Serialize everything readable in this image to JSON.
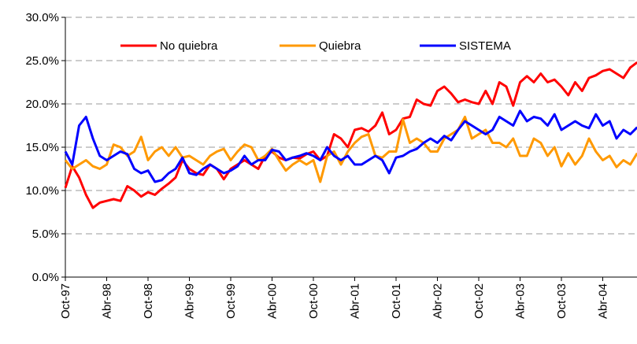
{
  "chart_data": {
    "type": "line",
    "categories": [
      "Oct-97",
      null,
      null,
      null,
      null,
      null,
      "Abr-98",
      null,
      null,
      null,
      null,
      null,
      "Oct-98",
      null,
      null,
      null,
      null,
      null,
      "Abr-99",
      null,
      null,
      null,
      null,
      null,
      "Oct-99",
      null,
      null,
      null,
      null,
      null,
      "Abr-00",
      null,
      null,
      null,
      null,
      null,
      "Oct-00",
      null,
      null,
      null,
      null,
      null,
      "Abr-01",
      null,
      null,
      null,
      null,
      null,
      "Oct-01",
      null,
      null,
      null,
      null,
      null,
      "Abr-02",
      null,
      null,
      null,
      null,
      null,
      "Oct-02",
      null,
      null,
      null,
      null,
      null,
      "Abr-03",
      null,
      null,
      null,
      null,
      null,
      "Oct-03",
      null,
      null,
      null,
      null,
      null,
      "Abr-04",
      null,
      null,
      null,
      null,
      null
    ],
    "series": [
      {
        "name": "No quiebra",
        "color": "#ff0000",
        "values": [
          10.3,
          12.8,
          11.5,
          9.5,
          8.0,
          8.6,
          8.8,
          9.0,
          8.8,
          10.5,
          10.0,
          9.3,
          9.8,
          9.5,
          10.2,
          10.8,
          11.5,
          13.5,
          12.5,
          12.0,
          11.8,
          13.0,
          12.5,
          11.3,
          12.5,
          13.0,
          13.5,
          13.0,
          12.5,
          14.0,
          14.5,
          13.8,
          13.5,
          13.8,
          13.7,
          14.2,
          14.5,
          13.5,
          14.0,
          16.5,
          16.0,
          15.0,
          17.0,
          17.2,
          16.8,
          17.5,
          19.0,
          16.5,
          17.0,
          18.3,
          18.5,
          20.5,
          20.0,
          19.8,
          21.5,
          22.0,
          21.2,
          20.2,
          20.5,
          20.2,
          20.0,
          21.5,
          20.0,
          22.5,
          22.0,
          19.8,
          22.5,
          23.2,
          22.5,
          23.5,
          22.5,
          22.8,
          22.0,
          21.0,
          22.5,
          21.5,
          23.0,
          23.3,
          23.8,
          24.0,
          23.5,
          23.0,
          24.2,
          24.8
        ]
      },
      {
        "name": "Quiebra",
        "color": "#ff9900",
        "values": [
          13.5,
          12.5,
          13.0,
          13.5,
          12.8,
          12.5,
          13.0,
          15.3,
          15.0,
          14.0,
          14.5,
          16.2,
          13.5,
          14.5,
          15.0,
          14.0,
          15.0,
          13.8,
          14.0,
          13.5,
          13.0,
          14.0,
          14.5,
          14.8,
          13.5,
          14.5,
          15.3,
          15.0,
          13.5,
          14.0,
          14.8,
          13.5,
          12.3,
          13.0,
          13.5,
          13.0,
          13.5,
          11.0,
          14.0,
          14.5,
          13.0,
          14.5,
          15.5,
          16.2,
          16.5,
          14.0,
          13.8,
          14.5,
          14.5,
          18.2,
          15.5,
          16.0,
          15.5,
          14.5,
          14.5,
          16.0,
          16.5,
          17.0,
          18.5,
          16.0,
          16.5,
          17.0,
          15.5,
          15.5,
          15.0,
          16.0,
          14.0,
          14.0,
          16.0,
          15.5,
          14.0,
          15.0,
          12.8,
          14.3,
          13.0,
          14.0,
          16.0,
          14.5,
          13.5,
          14.0,
          12.7,
          13.5,
          13.0,
          14.3
        ]
      },
      {
        "name": "SISTEMA",
        "color": "#0000ff",
        "values": [
          14.5,
          13.0,
          17.5,
          18.5,
          16.0,
          14.0,
          13.5,
          14.0,
          14.5,
          14.2,
          12.5,
          12.0,
          12.3,
          11.0,
          11.2,
          12.0,
          12.5,
          13.8,
          12.0,
          11.8,
          12.5,
          13.0,
          12.5,
          12.0,
          12.3,
          12.8,
          14.0,
          13.0,
          13.5,
          13.5,
          14.7,
          14.5,
          13.5,
          13.8,
          14.0,
          14.3,
          14.0,
          13.5,
          15.0,
          14.0,
          13.5,
          14.0,
          13.0,
          13.0,
          13.5,
          14.0,
          13.5,
          12.0,
          13.8,
          14.0,
          14.5,
          14.8,
          15.5,
          16.0,
          15.5,
          16.3,
          15.8,
          17.0,
          18.0,
          17.5,
          17.0,
          16.5,
          17.0,
          18.5,
          18.0,
          17.5,
          19.2,
          18.0,
          18.5,
          18.3,
          17.5,
          18.8,
          17.0,
          17.5,
          18.0,
          17.5,
          17.2,
          18.8,
          17.5,
          18.0,
          16.0,
          17.0,
          16.5,
          17.3
        ]
      }
    ],
    "ylim": [
      0,
      30
    ],
    "yticks": [
      {
        "value": 0,
        "label": "0.0%"
      },
      {
        "value": 5,
        "label": "5.0%"
      },
      {
        "value": 10,
        "label": "10.0%"
      },
      {
        "value": 15,
        "label": "15.0%"
      },
      {
        "value": 20,
        "label": "20.0%"
      },
      {
        "value": 25,
        "label": "25.0%"
      },
      {
        "value": 30,
        "label": "30.0%"
      }
    ],
    "grid": true,
    "legend": "top"
  }
}
